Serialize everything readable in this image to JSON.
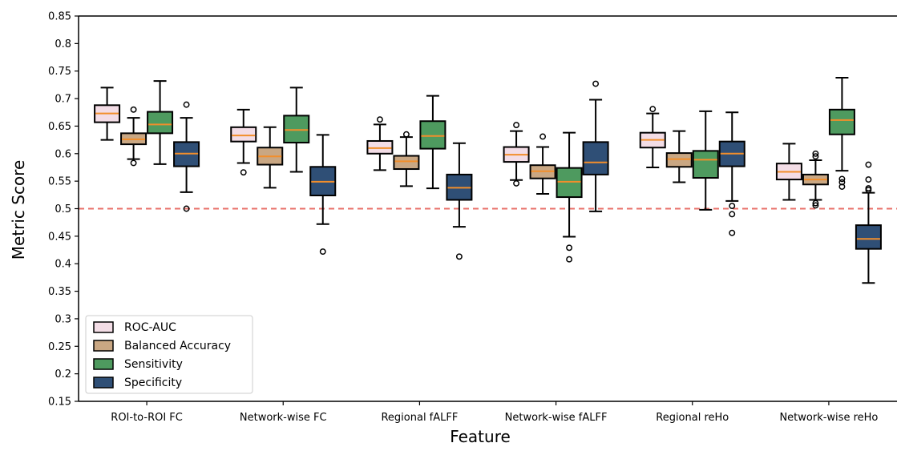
{
  "chart_data": {
    "type": "box",
    "xlabel": "Feature",
    "ylabel": "Metric Score",
    "ylim": [
      0.15,
      0.85
    ],
    "yticks": [
      "0.15",
      "0.2",
      "0.25",
      "0.3",
      "0.35",
      "0.4",
      "0.45",
      "0.5",
      "0.55",
      "0.6",
      "0.65",
      "0.7",
      "0.75",
      "0.8",
      "0.85"
    ],
    "categories": [
      "ROI-to-ROI FC",
      "Network-wise FC",
      "Regional fALFF",
      "Network-wise fALFF",
      "Regional reHo",
      "Network-wise reHo"
    ],
    "reference_line": {
      "y": 0.5,
      "color": "#e8706a",
      "style": "dashed"
    },
    "legend_position": "lower-left",
    "series": [
      {
        "name": "ROC-AUC",
        "color": "#f3dde6",
        "boxes": [
          {
            "whislo": 0.625,
            "q1": 0.657,
            "med": 0.673,
            "q3": 0.688,
            "whishi": 0.72,
            "fliers": []
          },
          {
            "whislo": 0.583,
            "q1": 0.622,
            "med": 0.633,
            "q3": 0.648,
            "whishi": 0.68,
            "fliers": [
              0.566
            ]
          },
          {
            "whislo": 0.57,
            "q1": 0.6,
            "med": 0.61,
            "q3": 0.623,
            "whishi": 0.653,
            "fliers": [
              0.662
            ]
          },
          {
            "whislo": 0.552,
            "q1": 0.585,
            "med": 0.598,
            "q3": 0.612,
            "whishi": 0.641,
            "fliers": [
              0.652,
              0.546
            ]
          },
          {
            "whislo": 0.575,
            "q1": 0.611,
            "med": 0.625,
            "q3": 0.638,
            "whishi": 0.673,
            "fliers": [
              0.681
            ]
          },
          {
            "whislo": 0.516,
            "q1": 0.553,
            "med": 0.567,
            "q3": 0.582,
            "whishi": 0.618,
            "fliers": []
          }
        ]
      },
      {
        "name": "Balanced Accuracy",
        "color": "#c9a783",
        "boxes": [
          {
            "whislo": 0.59,
            "q1": 0.617,
            "med": 0.626,
            "q3": 0.637,
            "whishi": 0.665,
            "fliers": [
              0.68,
              0.583
            ]
          },
          {
            "whislo": 0.538,
            "q1": 0.58,
            "med": 0.595,
            "q3": 0.611,
            "whishi": 0.648,
            "fliers": []
          },
          {
            "whislo": 0.541,
            "q1": 0.572,
            "med": 0.586,
            "q3": 0.596,
            "whishi": 0.63,
            "fliers": [
              0.635
            ]
          },
          {
            "whislo": 0.527,
            "q1": 0.555,
            "med": 0.568,
            "q3": 0.579,
            "whishi": 0.612,
            "fliers": [
              0.631
            ]
          },
          {
            "whislo": 0.548,
            "q1": 0.576,
            "med": 0.59,
            "q3": 0.601,
            "whishi": 0.641,
            "fliers": []
          },
          {
            "whislo": 0.516,
            "q1": 0.544,
            "med": 0.553,
            "q3": 0.562,
            "whishi": 0.588,
            "fliers": [
              0.6,
              0.595,
              0.51,
              0.506
            ]
          }
        ]
      },
      {
        "name": "Sensitivity",
        "color": "#4e9a5f",
        "boxes": [
          {
            "whislo": 0.581,
            "q1": 0.637,
            "med": 0.653,
            "q3": 0.676,
            "whishi": 0.732,
            "fliers": []
          },
          {
            "whislo": 0.567,
            "q1": 0.62,
            "med": 0.643,
            "q3": 0.669,
            "whishi": 0.72,
            "fliers": []
          },
          {
            "whislo": 0.537,
            "q1": 0.609,
            "med": 0.632,
            "q3": 0.659,
            "whishi": 0.705,
            "fliers": []
          },
          {
            "whislo": 0.449,
            "q1": 0.521,
            "med": 0.549,
            "q3": 0.574,
            "whishi": 0.638,
            "fliers": [
              0.429,
              0.408
            ]
          },
          {
            "whislo": 0.498,
            "q1": 0.556,
            "med": 0.589,
            "q3": 0.605,
            "whishi": 0.677,
            "fliers": []
          },
          {
            "whislo": 0.569,
            "q1": 0.635,
            "med": 0.661,
            "q3": 0.68,
            "whishi": 0.738,
            "fliers": [
              0.554,
              0.548,
              0.54
            ]
          }
        ]
      },
      {
        "name": "Specificity",
        "color": "#2f4f76",
        "boxes": [
          {
            "whislo": 0.53,
            "q1": 0.577,
            "med": 0.6,
            "q3": 0.621,
            "whishi": 0.665,
            "fliers": [
              0.689,
              0.5
            ]
          },
          {
            "whislo": 0.472,
            "q1": 0.524,
            "med": 0.549,
            "q3": 0.576,
            "whishi": 0.634,
            "fliers": [
              0.422
            ]
          },
          {
            "whislo": 0.467,
            "q1": 0.516,
            "med": 0.538,
            "q3": 0.562,
            "whishi": 0.619,
            "fliers": [
              0.413
            ]
          },
          {
            "whislo": 0.495,
            "q1": 0.562,
            "med": 0.584,
            "q3": 0.621,
            "whishi": 0.698,
            "fliers": [
              0.727
            ]
          },
          {
            "whislo": 0.514,
            "q1": 0.577,
            "med": 0.6,
            "q3": 0.622,
            "whishi": 0.675,
            "fliers": [
              0.505,
              0.49,
              0.456
            ]
          },
          {
            "whislo": 0.365,
            "q1": 0.427,
            "med": 0.445,
            "q3": 0.47,
            "whishi": 0.529,
            "fliers": [
              0.58,
              0.553,
              0.537,
              0.534
            ]
          }
        ]
      }
    ]
  }
}
